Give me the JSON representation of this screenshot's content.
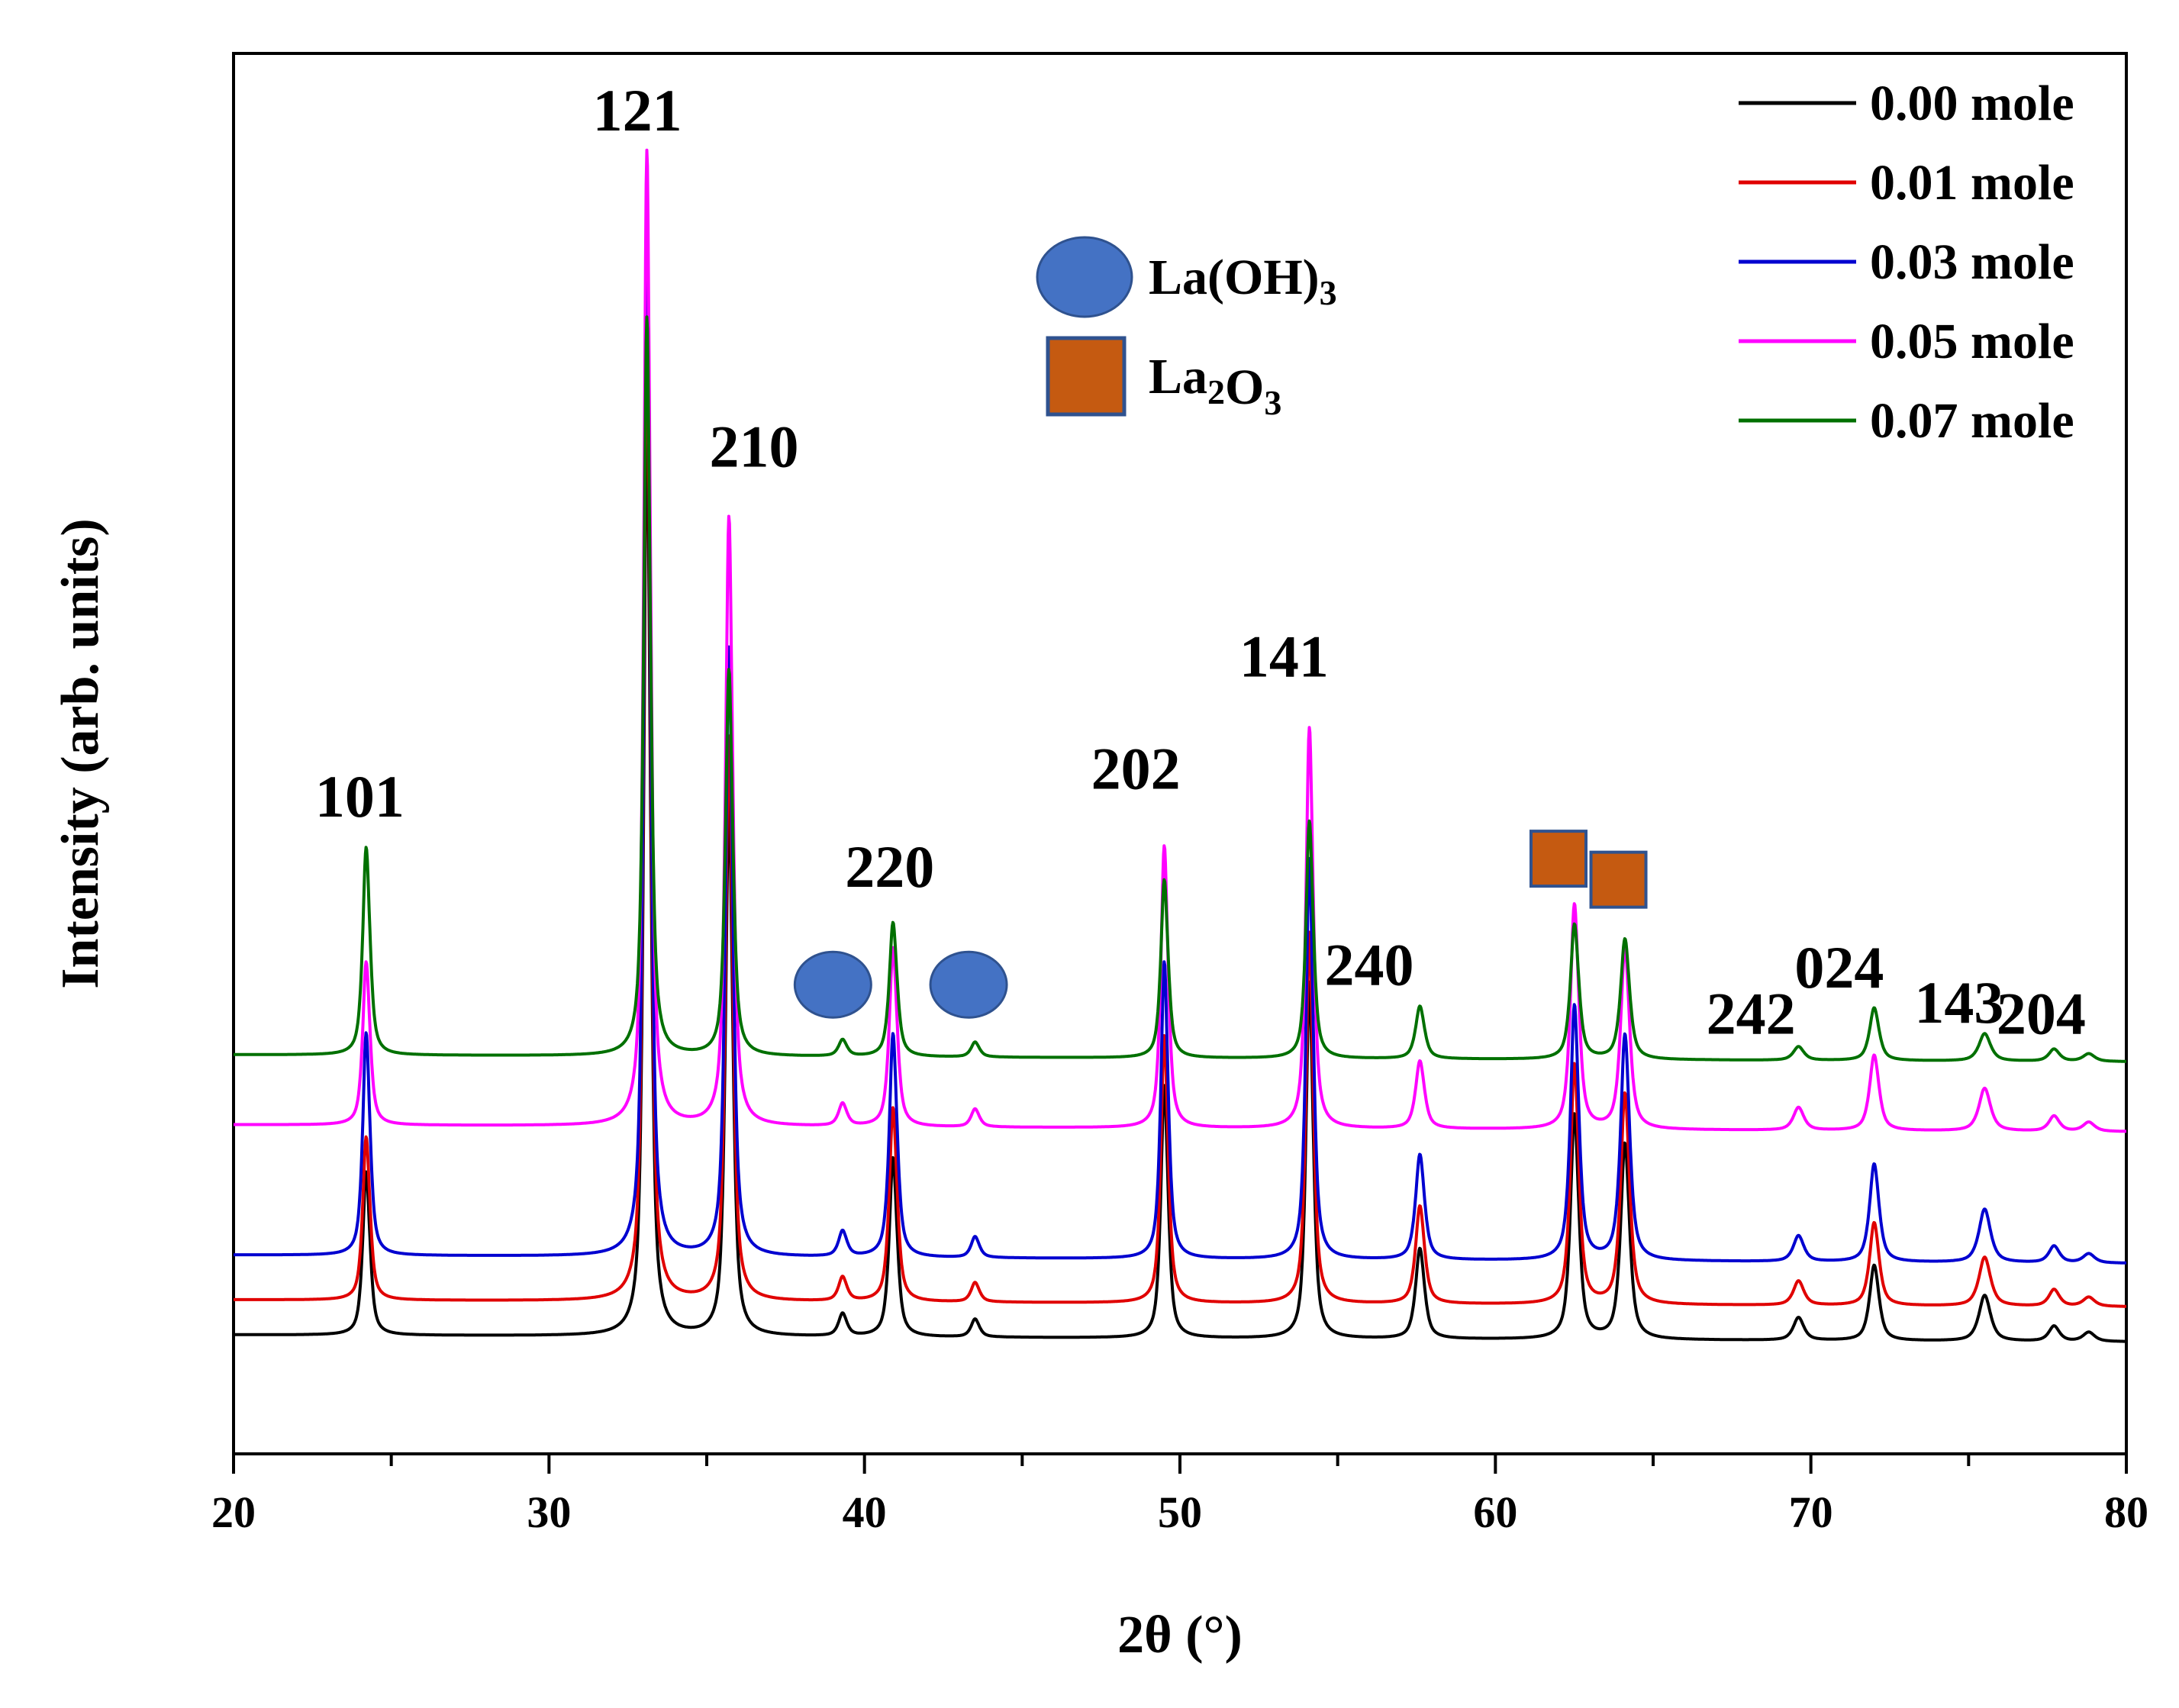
{
  "chart_data": {
    "type": "line",
    "title": "",
    "xlabel": "2θ (°)",
    "ylabel": "Intensity (arb. units)",
    "xlim": [
      20,
      80
    ],
    "ylim": [
      0,
      100
    ],
    "x_ticks": [
      20,
      30,
      40,
      50,
      60,
      70,
      80
    ],
    "x_tick_labels": [
      "20",
      "30",
      "40",
      "50",
      "60",
      "70",
      "80"
    ],
    "y_ticks_shown": false,
    "grid": false,
    "legend_position": "top-right",
    "peaks": [
      {
        "pos": 24.2,
        "w": 0.12
      },
      {
        "pos": 33.1,
        "w": 0.11
      },
      {
        "pos": 35.7,
        "w": 0.12
      },
      {
        "pos": 39.3,
        "w": 0.14
      },
      {
        "pos": 40.9,
        "w": 0.13
      },
      {
        "pos": 43.5,
        "w": 0.14
      },
      {
        "pos": 49.5,
        "w": 0.12
      },
      {
        "pos": 54.1,
        "w": 0.12
      },
      {
        "pos": 57.6,
        "w": 0.15
      },
      {
        "pos": 62.5,
        "w": 0.14
      },
      {
        "pos": 64.1,
        "w": 0.15
      },
      {
        "pos": 69.6,
        "w": 0.18
      },
      {
        "pos": 72.0,
        "w": 0.16
      },
      {
        "pos": 75.5,
        "w": 0.2
      },
      {
        "pos": 77.7,
        "w": 0.18
      },
      {
        "pos": 78.8,
        "w": 0.2
      }
    ],
    "series": [
      {
        "name": "0.00 mole",
        "color": "#000000",
        "offset": 8.5,
        "drift": -0.5,
        "heights": [
          11,
          63,
          36,
          1.5,
          12,
          1.2,
          17,
          24,
          6,
          15,
          13,
          1.5,
          5,
          3,
          1.0,
          0.6
        ]
      },
      {
        "name": "0.01 mole",
        "color": "#e00000",
        "offset": 11.0,
        "drift": -0.5,
        "heights": [
          11,
          67,
          38,
          1.6,
          13,
          1.3,
          18,
          25,
          6.5,
          16,
          14,
          1.6,
          5.5,
          3.2,
          1.1,
          0.6
        ]
      },
      {
        "name": "0.03 mole",
        "color": "#0000d0",
        "offset": 14.2,
        "drift": -0.6,
        "heights": [
          15,
          68,
          41,
          1.7,
          15,
          1.4,
          20,
          27,
          7,
          17,
          15,
          1.7,
          6.5,
          3.5,
          1.1,
          0.6
        ]
      },
      {
        "name": "0.05 mole",
        "color": "#ff00ff",
        "offset": 23.5,
        "drift": -0.5,
        "heights": [
          11,
          66,
          41,
          1.5,
          12,
          1.2,
          19,
          27,
          4.5,
          15,
          12,
          1.5,
          5.0,
          2.8,
          1.0,
          0.6
        ]
      },
      {
        "name": "0.07 mole",
        "color": "#007000",
        "offset": 28.5,
        "drift": -0.5,
        "heights": [
          14,
          50,
          26,
          1.1,
          9,
          1.0,
          12,
          16,
          3.5,
          9,
          8,
          0.9,
          3.5,
          1.8,
          0.8,
          0.5
        ]
      }
    ],
    "peak_labels": [
      {
        "text": "101",
        "x": 24.0,
        "y": 45.5
      },
      {
        "text": "121",
        "x": 32.8,
        "y": 94.5
      },
      {
        "text": "210",
        "x": 36.5,
        "y": 70.5
      },
      {
        "text": "220",
        "x": 40.8,
        "y": 40.5
      },
      {
        "text": "202",
        "x": 48.6,
        "y": 47.5
      },
      {
        "text": "141",
        "x": 53.3,
        "y": 55.5
      },
      {
        "text": "240",
        "x": 56.0,
        "y": 33.5
      },
      {
        "text": "242",
        "x": 68.1,
        "y": 30.0
      },
      {
        "text": "024",
        "x": 70.9,
        "y": 33.3
      },
      {
        "text": "143",
        "x": 74.7,
        "y": 30.8
      },
      {
        "text": "204",
        "x": 77.3,
        "y": 30.0
      }
    ],
    "phase_markers": [
      {
        "shape": "circle",
        "phase": "La(OH)3",
        "x": 39.0,
        "y": 33.5
      },
      {
        "shape": "circle",
        "phase": "La(OH)3",
        "x": 43.3,
        "y": 33.5
      },
      {
        "shape": "square",
        "phase": "La2O3",
        "x": 62.0,
        "y": 42.5
      },
      {
        "shape": "square",
        "phase": "La2O3",
        "x": 63.9,
        "y": 41.0
      }
    ],
    "phase_legend": [
      {
        "shape": "circle",
        "color": "#4472c4",
        "text": "La(OH)",
        "sub": "3",
        "mid": "",
        "sub2": "",
        "tail": ""
      },
      {
        "shape": "square",
        "color": "#c55a11",
        "text": "La",
        "sub": "2",
        "mid": "O",
        "sub2": "3",
        "tail": ""
      }
    ]
  }
}
